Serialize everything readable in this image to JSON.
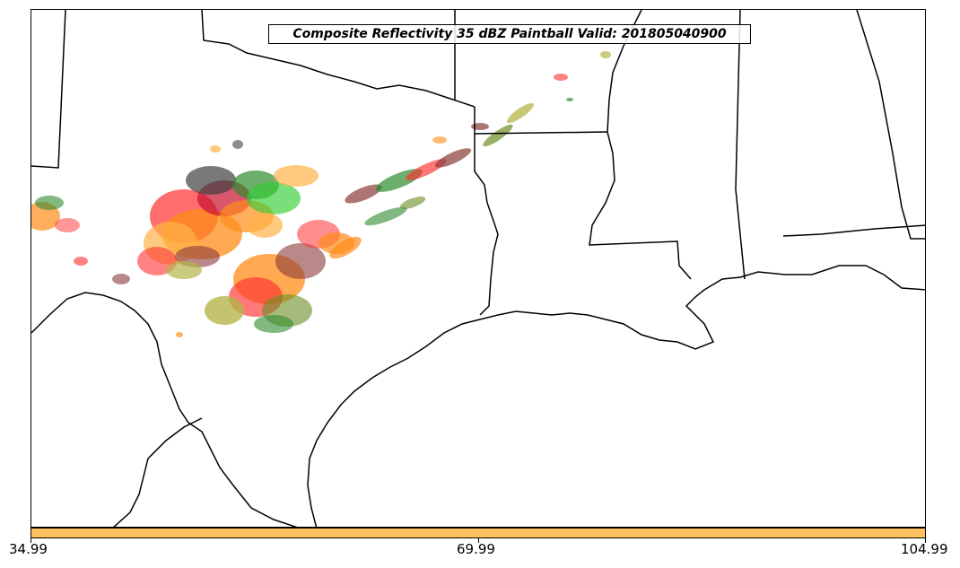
{
  "title": "Composite Reflectivity 35 dBZ Paintball Valid: 201805040900",
  "colorbar": {
    "color": "#fec35e",
    "ticks": [
      "34.99",
      "69.99",
      "104.99"
    ]
  },
  "map": {
    "boundary_color": "#000000",
    "paintball_colors": [
      "#ff3030",
      "#ff8c1a",
      "#ffb347",
      "#c8102e",
      "#2e8b2e",
      "#32cd32",
      "#6b8e23",
      "#a0522d",
      "#8b3a3a",
      "#404040",
      "#b5b54a"
    ]
  }
}
